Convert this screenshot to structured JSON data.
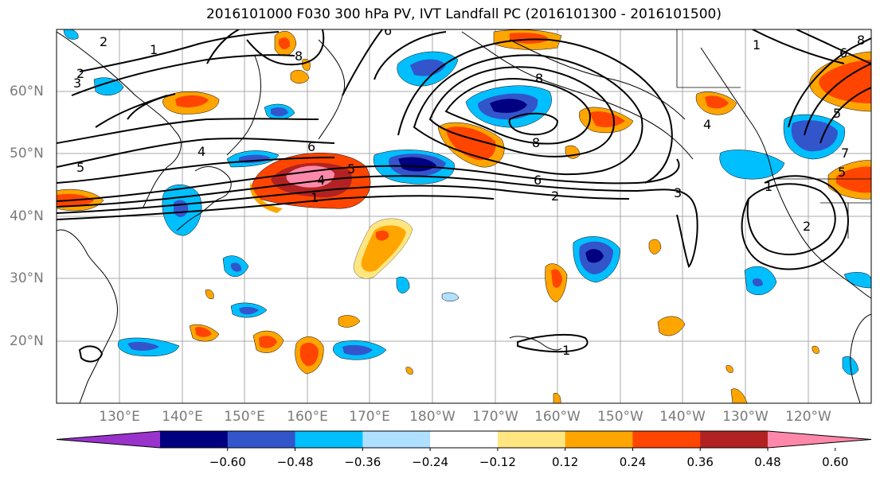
{
  "title": "2016101000 F030 300 hPa PV, IVT Landfall PC (2016101300 - 2016101500)",
  "lat_labels": [
    "60°N",
    "50°N",
    "40°N",
    "30°N",
    "20°N"
  ],
  "lon_labels": [
    "130°E",
    "140°E",
    "150°E",
    "160°E",
    "170°E",
    "180°W",
    "170°W",
    "160°W",
    "150°W",
    "140°W",
    "130°W",
    "120°W"
  ],
  "colorbar": {
    "tick_labels": [
      "−0.60",
      "−0.48",
      "−0.36",
      "−0.24",
      "−0.12",
      "0.12",
      "0.24",
      "0.36",
      "0.48",
      "0.60"
    ],
    "colors": [
      "#9933cc",
      "#000080",
      "#3355cc",
      "#00bfff",
      "#b0e0ff",
      "#ffffff",
      "#ffe680",
      "#ffa500",
      "#ff4500",
      "#b22222",
      "#ff88aa"
    ]
  },
  "contour_labels": [
    "2",
    "3",
    "5",
    "1",
    "2",
    "4",
    "6",
    "8",
    "8",
    "6",
    "1",
    "5",
    "4",
    "1",
    "8",
    "6",
    "2",
    "3",
    "1",
    "2",
    "1",
    "4",
    "5",
    "7",
    "5",
    "6",
    "8"
  ],
  "colors": {
    "land_outline": "#000000",
    "grid": "#999999",
    "contour": "#000000"
  }
}
